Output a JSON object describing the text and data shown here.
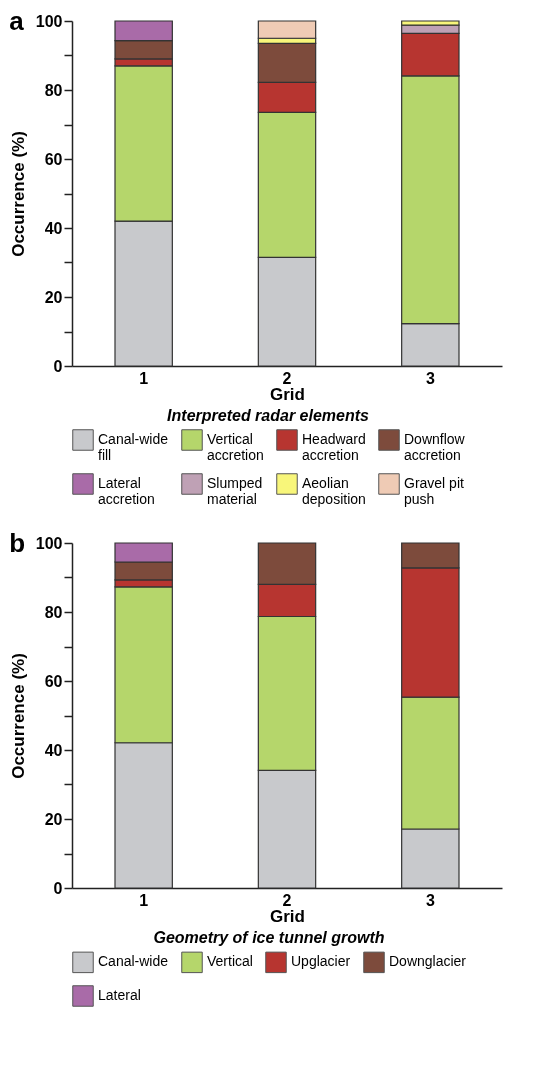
{
  "chart_data": [
    {
      "type": "bar",
      "stacked": true,
      "title": "a",
      "xlabel": "Grid",
      "ylabel": "Occurrence (%)",
      "legend_title": "Interpreted radar elements",
      "legend": "bottom",
      "grid": false,
      "categories": [
        "1",
        "2",
        "3"
      ],
      "ylim": [
        0,
        100
      ],
      "yticks": [
        0,
        {
          "value": 10,
          "label": null
        },
        20,
        {
          "value": 30,
          "label": null
        },
        40,
        {
          "value": 50,
          "label": null
        },
        60,
        {
          "value": 70,
          "label": null
        },
        80,
        {
          "value": 90,
          "label": null
        },
        100
      ],
      "series": [
        {
          "name": "Canal-wide fill",
          "color": "#c8c9cc",
          "values": [
            42,
            31.5,
            12.3
          ]
        },
        {
          "name": "Vertical accretion",
          "color": "#b5d66b",
          "values": [
            45,
            42,
            71.8
          ]
        },
        {
          "name": "Headward accretion",
          "color": "#b73530",
          "values": [
            2,
            8.7,
            12.3
          ]
        },
        {
          "name": "Downflow accretion",
          "color": "#7d4b3c",
          "values": [
            5.3,
            11.3,
            0
          ]
        },
        {
          "name": "Lateral accretion",
          "color": "#a96ba8",
          "values": [
            5.7,
            0,
            0
          ]
        },
        {
          "name": "Slumped material",
          "color": "#bfa1b5",
          "values": [
            0,
            0,
            2.4
          ]
        },
        {
          "name": "Aeolian deposition",
          "color": "#f8f67a",
          "values": [
            0,
            1.5,
            1.2
          ]
        },
        {
          "name": "Gravel pit push",
          "color": "#efcbb5",
          "values": [
            0,
            5,
            0
          ]
        }
      ]
    },
    {
      "type": "bar",
      "stacked": true,
      "title": "b",
      "xlabel": "Grid",
      "ylabel": "Occurrence (%)",
      "legend_title": "Geometry of ice tunnel growth",
      "legend": "bottom",
      "grid": false,
      "categories": [
        "1",
        "2",
        "3"
      ],
      "ylim": [
        0,
        100
      ],
      "yticks": [
        0,
        {
          "value": 10,
          "label": null
        },
        20,
        {
          "value": 30,
          "label": null
        },
        40,
        {
          "value": 50,
          "label": null
        },
        60,
        {
          "value": 70,
          "label": null
        },
        80,
        {
          "value": 90,
          "label": null
        },
        100
      ],
      "series": [
        {
          "name": "Canal-wide",
          "color": "#c8c9cc",
          "values": [
            42.1,
            34.1,
            17.1
          ]
        },
        {
          "name": "Vertical",
          "color": "#b5d66b",
          "values": [
            45.2,
            44.6,
            38.2
          ]
        },
        {
          "name": "Upglacier",
          "color": "#b73530",
          "values": [
            2,
            9.3,
            37.5
          ]
        },
        {
          "name": "Downglacier",
          "color": "#7d4b3c",
          "values": [
            5.2,
            12,
            7.2
          ]
        },
        {
          "name": "Lateral",
          "color": "#a96ba8",
          "values": [
            5.5,
            0,
            0
          ]
        }
      ]
    }
  ]
}
